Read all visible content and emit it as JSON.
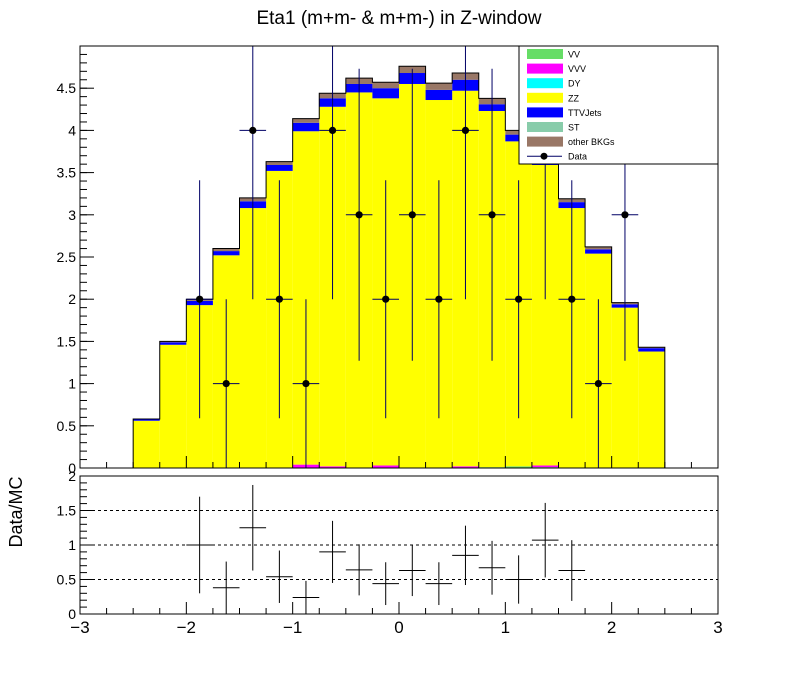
{
  "chart_data": [
    {
      "type": "stacked-histogram",
      "title": "Eta1 (m+m- & m+m-) in Z-window",
      "xlim": [
        -3,
        3
      ],
      "ylim": [
        0,
        5
      ],
      "bin_edges": [
        -2.5,
        -2.25,
        -2.0,
        -1.75,
        -1.5,
        -1.25,
        -1.0,
        -0.75,
        -0.5,
        -0.25,
        0.0,
        0.25,
        0.5,
        0.75,
        1.0,
        1.25,
        1.5,
        1.75,
        2.0,
        2.25,
        2.5
      ],
      "yticks": [
        "0",
        "0.5",
        "1",
        "1.5",
        "2",
        "2.5",
        "3",
        "3.5",
        "4",
        "4.5"
      ],
      "legend_position": "top-right",
      "legend": [
        "VV",
        "VVV",
        "DY",
        "ZZ",
        "TTVJets",
        "ST",
        "other BKGs",
        "Data"
      ],
      "series": [
        {
          "name": "VV",
          "color": "#66dd66",
          "values": [
            0,
            0,
            0,
            0,
            0,
            0,
            0,
            0,
            0,
            0,
            0,
            0,
            0,
            0.01,
            0.02,
            0.01,
            0,
            0,
            0,
            0
          ]
        },
        {
          "name": "VVV",
          "color": "#ff00ff",
          "values": [
            0,
            0,
            0,
            0,
            0,
            0,
            0.04,
            0.02,
            0,
            0.03,
            0,
            0,
            0.02,
            0,
            0,
            0.02,
            0,
            0,
            0,
            0
          ]
        },
        {
          "name": "DY",
          "color": "#00ffff",
          "values": [
            0,
            0,
            0,
            0,
            0,
            0,
            0,
            0,
            0,
            0,
            0,
            0,
            0,
            0,
            0,
            0,
            0,
            0,
            0,
            0
          ]
        },
        {
          "name": "ZZ",
          "color": "#ffff00",
          "values": [
            0.56,
            1.46,
            1.93,
            2.52,
            3.08,
            3.52,
            3.95,
            4.26,
            4.45,
            4.35,
            4.55,
            4.36,
            4.45,
            4.22,
            3.85,
            3.56,
            3.08,
            2.54,
            1.9,
            1.38
          ]
        },
        {
          "name": "TTVJets",
          "color": "#0000ff",
          "values": [
            0.02,
            0.03,
            0.05,
            0.05,
            0.08,
            0.07,
            0.1,
            0.1,
            0.1,
            0.12,
            0.13,
            0.12,
            0.13,
            0.08,
            0.08,
            0.08,
            0.07,
            0.05,
            0.04,
            0.04
          ]
        },
        {
          "name": "ST",
          "color": "#88ccaa",
          "values": [
            0,
            0,
            0,
            0,
            0,
            0,
            0,
            0,
            0,
            0,
            0,
            0,
            0,
            0,
            0,
            0,
            0,
            0,
            0,
            0
          ]
        },
        {
          "name": "other BKGs",
          "color": "#997766",
          "values": [
            0,
            0.01,
            0.02,
            0.03,
            0.04,
            0.04,
            0.05,
            0.06,
            0.07,
            0.07,
            0.08,
            0.08,
            0.08,
            0.07,
            0.05,
            0.04,
            0.04,
            0.03,
            0.02,
            0.01
          ]
        }
      ],
      "data": {
        "name": "Data",
        "x": [
          -1.875,
          -1.625,
          -1.375,
          -1.125,
          -0.875,
          -0.625,
          -0.375,
          -0.125,
          0.125,
          0.375,
          0.625,
          0.875,
          1.125,
          1.375,
          1.625,
          1.875,
          2.125
        ],
        "y": [
          2,
          1,
          4,
          2,
          1,
          4,
          3,
          2,
          3,
          2,
          4,
          3,
          2,
          4,
          2,
          1,
          3
        ],
        "err": [
          1.41,
          1.0,
          2.0,
          1.41,
          1.0,
          2.0,
          1.73,
          1.41,
          1.73,
          1.41,
          2.0,
          1.73,
          1.41,
          2.0,
          1.41,
          1.0,
          1.73
        ]
      }
    },
    {
      "type": "ratio",
      "ylabel": "Data/MC",
      "xlim": [
        -3,
        3
      ],
      "ylim": [
        0,
        2
      ],
      "xticks": [
        "−3",
        "−2",
        "−1",
        "0",
        "1",
        "2",
        "3"
      ],
      "yticks": [
        "0",
        "0.5",
        "1",
        "1.5",
        "2"
      ],
      "reference_lines": [
        0.5,
        1.0,
        1.5
      ],
      "x": [
        -1.875,
        -1.625,
        -1.375,
        -1.125,
        -0.875,
        -0.625,
        -0.375,
        -0.125,
        0.125,
        0.375,
        0.625,
        0.875,
        1.125,
        1.375,
        1.625
      ],
      "y": [
        1.0,
        0.38,
        1.25,
        0.54,
        0.24,
        0.9,
        0.64,
        0.44,
        0.63,
        0.44,
        0.85,
        0.67,
        0.5,
        1.07,
        0.63
      ],
      "err": [
        0.7,
        0.38,
        0.62,
        0.38,
        0.24,
        0.45,
        0.37,
        0.31,
        0.37,
        0.31,
        0.43,
        0.39,
        0.35,
        0.54,
        0.44
      ]
    }
  ]
}
